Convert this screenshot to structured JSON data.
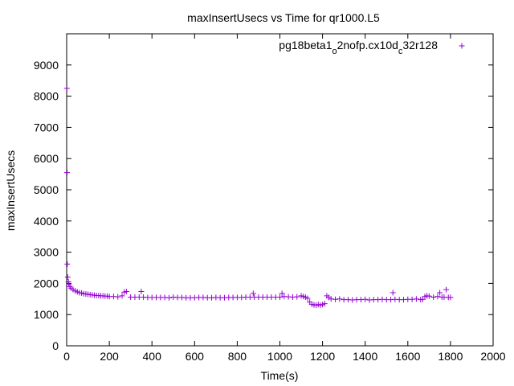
{
  "chart_data": {
    "type": "scatter",
    "title": "maxInsertUsecs vs Time for qr1000.L5",
    "xlabel": "Time(s)",
    "ylabel": "maxInsertUsecs",
    "xlim": [
      0,
      2000
    ],
    "ylim": [
      0,
      10000
    ],
    "xticks": [
      "0",
      "200",
      "400",
      "600",
      "800",
      "1000",
      "1200",
      "1400",
      "1600",
      "1800",
      "2000"
    ],
    "yticks": [
      "0",
      "1000",
      "2000",
      "3000",
      "4000",
      "5000",
      "6000",
      "7000",
      "8000",
      "9000"
    ],
    "grid": false,
    "legend_position": "top-right",
    "marker": "plus",
    "color": "#9400d3",
    "legend": {
      "parts": [
        "pg18beta1",
        "o",
        "2nofp.cx10d",
        "c",
        "32r128"
      ]
    },
    "series": [
      {
        "name": "pg18beta1_o2nofp.cx10d_c32r128",
        "x": [
          1,
          2,
          3,
          5,
          8,
          10,
          15,
          20,
          30,
          40,
          50,
          60,
          70,
          80,
          90,
          100,
          110,
          120,
          130,
          140,
          150,
          160,
          170,
          180,
          190,
          200,
          220,
          240,
          260,
          270,
          280,
          300,
          320,
          340,
          350,
          360,
          380,
          400,
          420,
          440,
          460,
          480,
          500,
          520,
          540,
          560,
          580,
          600,
          620,
          640,
          660,
          680,
          700,
          720,
          740,
          760,
          780,
          800,
          820,
          840,
          860,
          875,
          880,
          900,
          920,
          940,
          960,
          980,
          1000,
          1010,
          1020,
          1040,
          1060,
          1080,
          1100,
          1110,
          1120,
          1130,
          1140,
          1150,
          1160,
          1170,
          1180,
          1190,
          1200,
          1210,
          1220,
          1230,
          1240,
          1260,
          1280,
          1300,
          1320,
          1340,
          1360,
          1380,
          1400,
          1420,
          1440,
          1460,
          1480,
          1500,
          1520,
          1530,
          1540,
          1560,
          1580,
          1600,
          1620,
          1640,
          1660,
          1670,
          1680,
          1690,
          1700,
          1720,
          1740,
          1750,
          1760,
          1770,
          1780,
          1790,
          1800
        ],
        "y": [
          8250,
          5550,
          2620,
          2200,
          2050,
          1980,
          1900,
          1850,
          1800,
          1760,
          1730,
          1700,
          1690,
          1670,
          1660,
          1650,
          1640,
          1630,
          1620,
          1610,
          1610,
          1600,
          1600,
          1590,
          1590,
          1580,
          1580,
          1570,
          1600,
          1720,
          1740,
          1560,
          1560,
          1560,
          1740,
          1560,
          1550,
          1550,
          1550,
          1550,
          1550,
          1540,
          1560,
          1550,
          1550,
          1540,
          1540,
          1540,
          1550,
          1550,
          1540,
          1540,
          1550,
          1540,
          1540,
          1550,
          1550,
          1550,
          1550,
          1560,
          1560,
          1680,
          1560,
          1560,
          1560,
          1560,
          1560,
          1560,
          1560,
          1680,
          1580,
          1570,
          1560,
          1570,
          1600,
          1580,
          1560,
          1520,
          1400,
          1330,
          1310,
          1300,
          1320,
          1300,
          1320,
          1350,
          1600,
          1550,
          1500,
          1490,
          1500,
          1480,
          1480,
          1470,
          1480,
          1480,
          1490,
          1470,
          1480,
          1480,
          1490,
          1480,
          1480,
          1700,
          1490,
          1480,
          1480,
          1490,
          1490,
          1500,
          1480,
          1490,
          1580,
          1600,
          1590,
          1560,
          1580,
          1700,
          1560,
          1560,
          1800,
          1550,
          1550
        ]
      }
    ]
  }
}
